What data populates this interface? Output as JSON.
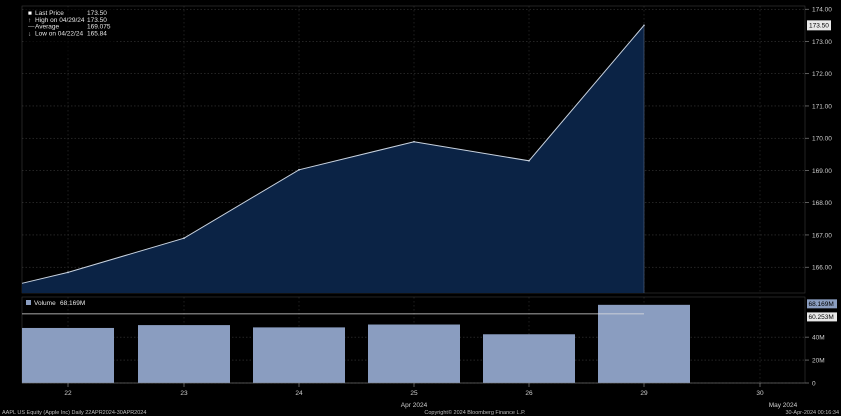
{
  "chart_data": [
    {
      "type": "area",
      "x": [
        "22",
        "23",
        "24",
        "25",
        "26",
        "29"
      ],
      "values": [
        165.84,
        166.9,
        169.02,
        169.89,
        169.3,
        173.5
      ],
      "start_value": 165.5,
      "ylim": [
        165.2,
        174.1
      ],
      "yticks": [
        "166.00",
        "167.00",
        "168.00",
        "169.00",
        "170.00",
        "171.00",
        "172.00",
        "173.00",
        "174.00"
      ],
      "price_tag": "173.50",
      "legend": [
        {
          "label": "Last Price",
          "value": "173.50"
        },
        {
          "label": "High on 04/29/24",
          "value": "173.50"
        },
        {
          "label": "Average",
          "value": "169.075"
        },
        {
          "label": "Low on 04/22/24",
          "value": "165.84"
        }
      ],
      "colors": {
        "fill": "#0b2345",
        "line": "#c9d3e0"
      }
    },
    {
      "type": "bar",
      "categories": [
        "22",
        "23",
        "24",
        "25",
        "26",
        "29"
      ],
      "values": [
        48,
        50.5,
        48.5,
        51,
        42.5,
        68.169
      ],
      "average_value": 60.253,
      "ylim": [
        0,
        75
      ],
      "yticks": [
        "0",
        "20M",
        "40M"
      ],
      "legend": {
        "label": "Volume",
        "value": "68.169M"
      },
      "tags": [
        "68.169M",
        "60.253M"
      ],
      "colors": {
        "bar": "#8a9dc0",
        "avg_line": "#e0e0e0"
      }
    }
  ],
  "x_axis": {
    "ticks": [
      "22",
      "23",
      "24",
      "25",
      "26",
      "29",
      "30"
    ],
    "month_labels": [
      "Apr 2024",
      "May 2024"
    ]
  },
  "footer": {
    "left": "AAPL US Equity (Apple Inc) Daily 22APR2024-30APR2024",
    "center": "Copyright© 2024 Bloomberg Finance L.P.",
    "right": "30-Apr-2024 00:16:34"
  }
}
